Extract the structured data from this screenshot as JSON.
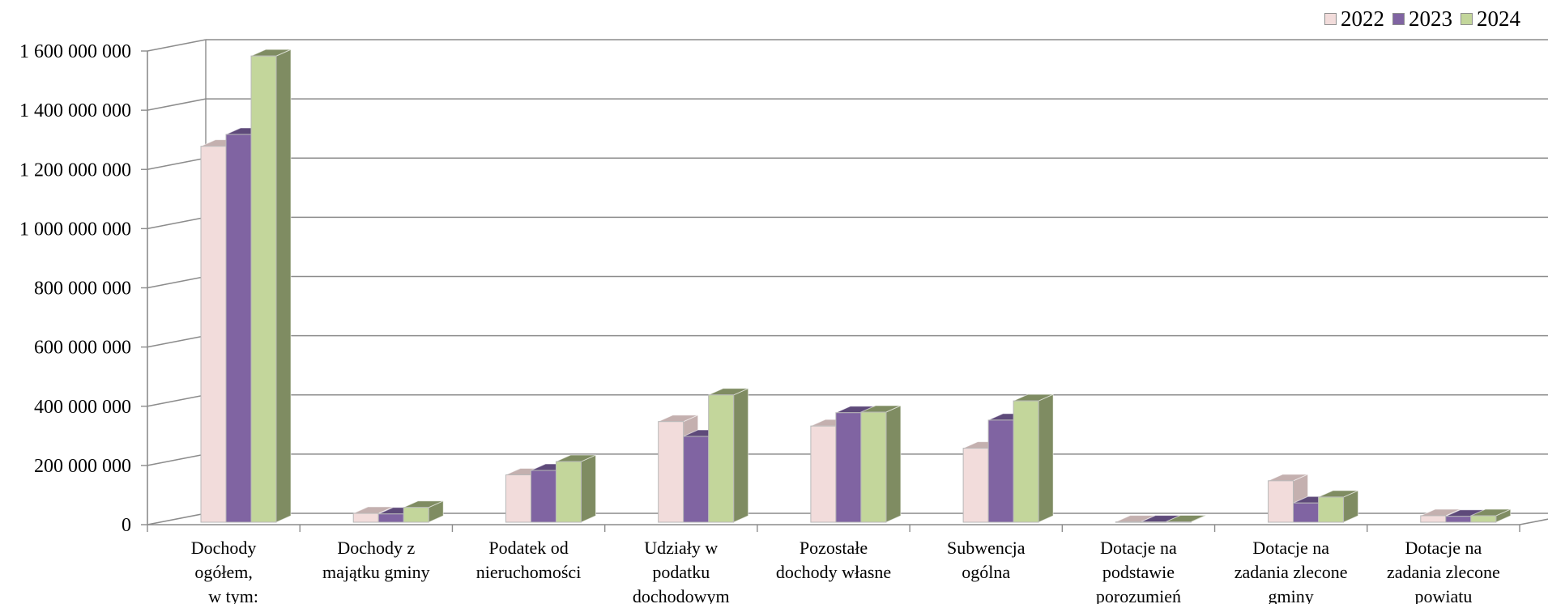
{
  "chart_data": {
    "type": "bar",
    "categories": [
      "Dochody ogółem, w tym:",
      "Dochody z majątku gminy",
      "Podatek od nieruchomości",
      "Udziały w podatku dochodowym",
      "Pozostałe dochody własne",
      "Subwencja ogólna",
      "Dotacje na podstawie porozumień",
      "Dotacje na zadania zlecone gminy",
      "Dotacje na zadania zlecone powiatu"
    ],
    "category_lines": [
      [
        "Dochody",
        "ogółem,",
        "w tym:"
      ],
      [
        "Dochody z",
        "majątku gminy"
      ],
      [
        "Podatek od",
        "nieruchomości"
      ],
      [
        "Udziały w",
        "podatku",
        "dochodowym"
      ],
      [
        "Pozostałe",
        "dochody własne"
      ],
      [
        "Subwencja",
        "ogólna"
      ],
      [
        "Dotacje na",
        "podstawie",
        "porozumień"
      ],
      [
        "Dotacje na",
        "zadania zlecone",
        "gminy"
      ],
      [
        "Dotacje na",
        "zadania zlecone",
        "powiatu"
      ]
    ],
    "series": [
      {
        "name": "2022",
        "color": "#F2DCDB",
        "side": "#C4B0AF",
        "values": [
          1270000000,
          30000000,
          160000000,
          340000000,
          325000000,
          250000000,
          1000000,
          140000000,
          22000000
        ]
      },
      {
        "name": "2023",
        "color": "#8064A2",
        "side": "#5E4A7A",
        "values": [
          1310000000,
          28000000,
          175000000,
          290000000,
          370000000,
          345000000,
          1000000,
          65000000,
          20000000
        ]
      },
      {
        "name": "2024",
        "color": "#C3D69B",
        "side": "#7F8C62",
        "values": [
          1575000000,
          50000000,
          205000000,
          430000000,
          372000000,
          410000000,
          1500000,
          85000000,
          22000000
        ]
      }
    ],
    "yticks": [
      "0",
      "200 000 000",
      "400 000 000",
      "600 000 000",
      "800 000 000",
      "1 000 000 000",
      "1 200 000 000",
      "1 400 000 000",
      "1 600 000 000"
    ],
    "ylim": [
      0,
      1600000000
    ],
    "legend_position": "top-right",
    "grid": true,
    "style": "3d-clustered-column"
  }
}
